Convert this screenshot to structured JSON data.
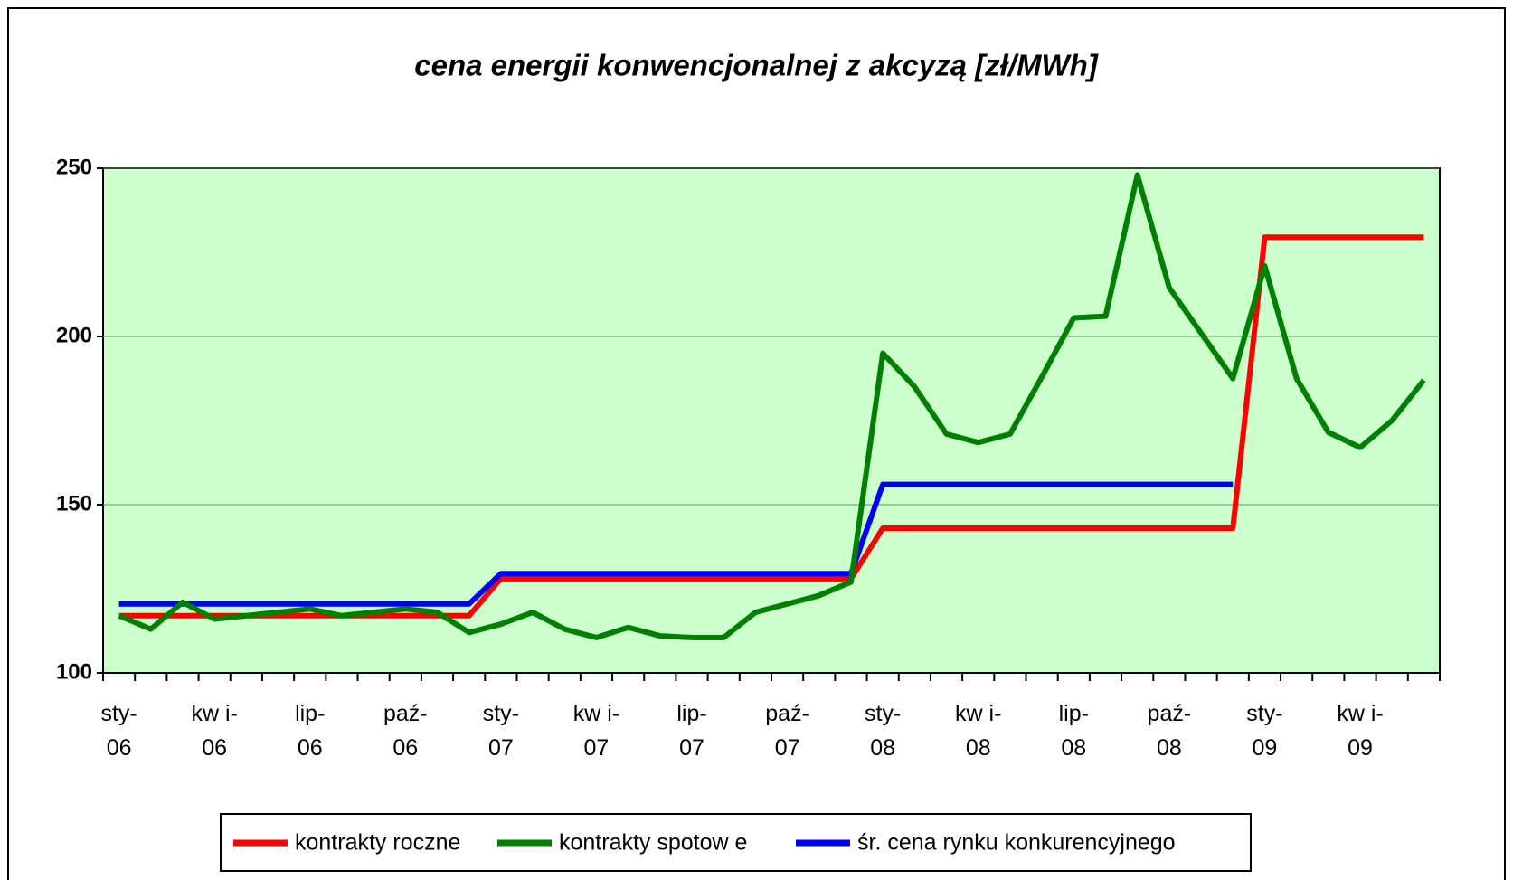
{
  "chart_data": {
    "type": "line",
    "title": "cena energii konwencjonalnej z akcyzą [zł/MWh]",
    "categories": [
      "sty-\n06",
      null,
      null,
      "kw i-\n06",
      null,
      null,
      "lip-\n06",
      null,
      null,
      "paź-\n06",
      null,
      null,
      "sty-\n07",
      null,
      null,
      "kw i-\n07",
      null,
      null,
      "lip-\n07",
      null,
      null,
      "paź-\n07",
      null,
      null,
      "sty-\n08",
      null,
      null,
      "kw i-\n08",
      null,
      null,
      "lip-\n08",
      null,
      null,
      "paź-\n08",
      null,
      null,
      "sty-\n09",
      null,
      null,
      "kw i-\n09",
      null,
      null
    ],
    "series": [
      {
        "name": "kontrakty roczne",
        "color": "#ff0000",
        "values": [
          117,
          117,
          117,
          117,
          117,
          117,
          117,
          117,
          117,
          117,
          117,
          117,
          128,
          128,
          128,
          128,
          128,
          128,
          128,
          128,
          128,
          128,
          128,
          128,
          143,
          143,
          143,
          143,
          143,
          143,
          143,
          143,
          143,
          143,
          143,
          143,
          229.5,
          229.5,
          229.5,
          229.5,
          229.5,
          229.5
        ]
      },
      {
        "name": "kontrakty spotow e",
        "color": "#008000",
        "values": [
          117,
          113,
          121,
          116,
          117,
          118,
          119,
          117,
          118,
          119,
          118,
          112,
          114.5,
          118,
          113,
          110.5,
          113.5,
          111,
          110.5,
          110.5,
          118,
          120.5,
          123,
          127,
          195,
          185,
          171,
          168.5,
          171,
          188,
          205.5,
          206,
          248,
          214.5,
          201,
          187.5,
          221,
          187.5,
          171.5,
          167,
          175,
          187
        ]
      },
      {
        "name": "śr. cena rynku konkurencyjnego",
        "color": "#0000ff",
        "values": [
          120.5,
          120.5,
          120.5,
          120.5,
          120.5,
          120.5,
          120.5,
          120.5,
          120.5,
          120.5,
          120.5,
          120.5,
          129.5,
          129.5,
          129.5,
          129.5,
          129.5,
          129.5,
          129.5,
          129.5,
          129.5,
          129.5,
          129.5,
          129.5,
          156,
          156,
          156,
          156,
          156,
          156,
          156,
          156,
          156,
          156,
          156,
          156,
          null,
          null,
          null,
          null,
          null,
          null
        ]
      }
    ],
    "ylim": [
      100,
      250
    ],
    "yticks": [
      100,
      150,
      200,
      250
    ],
    "grid": true,
    "legend": "bottom",
    "plot_background": "#ccffcc"
  }
}
